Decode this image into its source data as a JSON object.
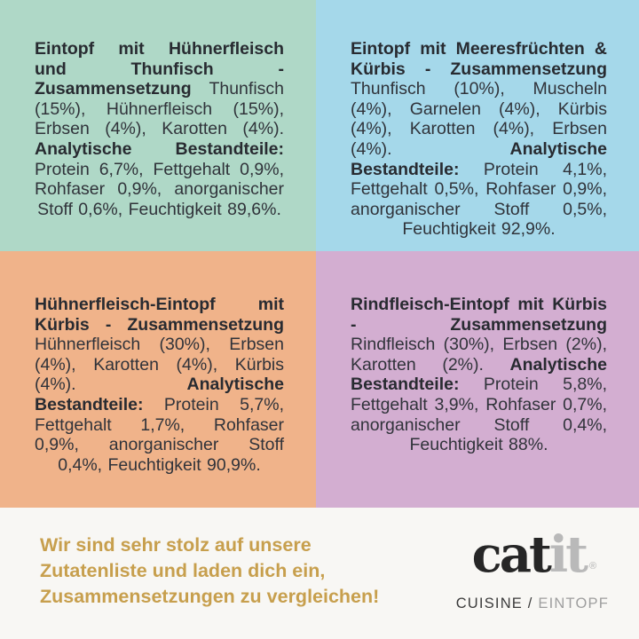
{
  "panels": [
    {
      "id": "chicken-tuna",
      "bg": "#afd8c7",
      "title": "Eintopf mit Hühnerfleisch und Thunfisch - Zusammensetzung",
      "composition": "Thunfisch (15%), Hühnerfleisch (15%), Erbsen (4%), Karotten (4%).",
      "analytical_label": "Analytische Bestandteile:",
      "analytical": "Protein 6,7%, Fettgehalt 0,9%, Rohfaser 0,9%, anorganischer Stoff 0,6%, Feuchtigkeit 89,6%."
    },
    {
      "id": "seafood-pumpkin",
      "bg": "#a5d8ea",
      "title": "Eintopf mit Meeresfrüchten & Kürbis - Zusammensetzung",
      "composition": "Thunfisch (10%), Muscheln (4%), Garnelen (4%), Kürbis (4%), Karotten (4%), Erbsen (4%).",
      "analytical_label": "Analytische Bestandteile:",
      "analytical": "Protein 4,1%, Fettgehalt 0,5%, Rohfaser 0,9%, anorganischer Stoff 0,5%, Feuchtigkeit 92,9%."
    },
    {
      "id": "chicken-pumpkin",
      "bg": "#f0b38a",
      "title": "Hühnerfleisch-Eintopf mit Kürbis - Zusammensetzung",
      "composition": "Hühnerfleisch (30%), Erbsen (4%), Karotten (4%), Kürbis (4%).",
      "analytical_label": "Analytische Bestandteile:",
      "analytical": "Protein 5,7%, Fettgehalt 1,7%, Rohfaser 0,9%, anorganischer Stoff 0,4%, Feuchtigkeit 90,9%."
    },
    {
      "id": "beef-pumpkin",
      "bg": "#d3aed1",
      "title": "Rindfleisch-Eintopf mit Kürbis - Zusammensetzung",
      "composition": "Rindfleisch (30%), Erbsen (2%), Karotten (2%).",
      "analytical_label": "Analytische Bestandteile:",
      "analytical": "Protein 5,8%, Fettgehalt 3,9%, Rohfaser 0,7%, anorganischer Stoff 0,4%, Feuchtigkeit 88%."
    }
  ],
  "footer": {
    "message": "Wir sind sehr stolz auf unsere\nZutatenliste und laden dich ein,\nZusammensetzungen zu vergleichen!",
    "logo": {
      "part_dark": "cat",
      "part_gray": "it",
      "registered": "®",
      "subtitle_dark": "CUISINE /",
      "subtitle_gray": "EINTOPF"
    }
  },
  "colors": {
    "panel_green": "#afd8c7",
    "panel_blue": "#a5d8ea",
    "panel_orange": "#f0b38a",
    "panel_purple": "#d3aed1",
    "panel_text": "#30333a",
    "footer_background": "#f8f7f4",
    "claim_gold": "#c79f4d",
    "logo_dark": "#262626",
    "logo_gray": "#b9b9b9",
    "subtitle_dark": "#3b3b3b",
    "subtitle_gray": "#9e9e9e"
  }
}
